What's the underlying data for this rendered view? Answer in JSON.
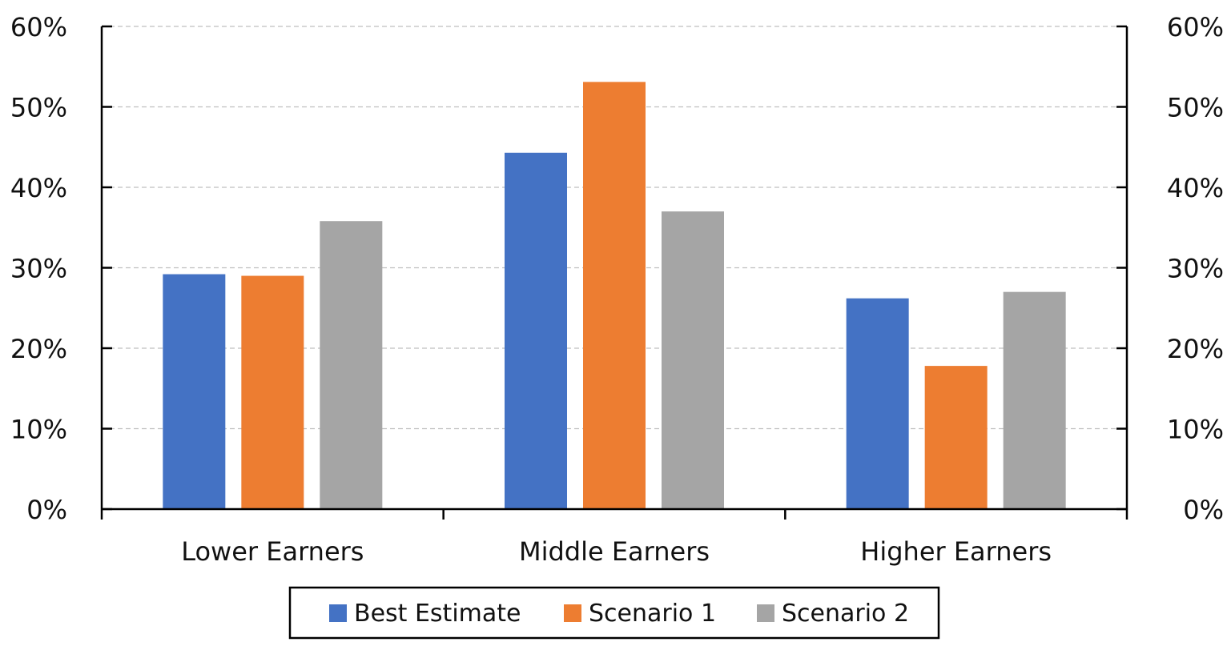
{
  "chart_data": {
    "type": "bar",
    "categories": [
      "Lower Earners",
      "Middle Earners",
      "Higher Earners"
    ],
    "series": [
      {
        "name": "Best Estimate",
        "color": "#4472C4",
        "values": [
          0.292,
          0.443,
          0.262
        ]
      },
      {
        "name": "Scenario 1",
        "color": "#ED7D31",
        "values": [
          0.29,
          0.531,
          0.178
        ]
      },
      {
        "name": "Scenario 2",
        "color": "#A5A5A5",
        "values": [
          0.358,
          0.37,
          0.27
        ]
      }
    ],
    "ylim": [
      0,
      0.6
    ],
    "yticks": [
      0,
      0.1,
      0.2,
      0.3,
      0.4,
      0.5,
      0.6
    ],
    "ytick_labels": [
      "0%",
      "10%",
      "20%",
      "30%",
      "40%",
      "50%",
      "60%"
    ],
    "secondary_y_axis": true,
    "grid": "horizontal dashed",
    "legend_position": "bottom",
    "title": "",
    "xlabel": "",
    "ylabel": ""
  }
}
